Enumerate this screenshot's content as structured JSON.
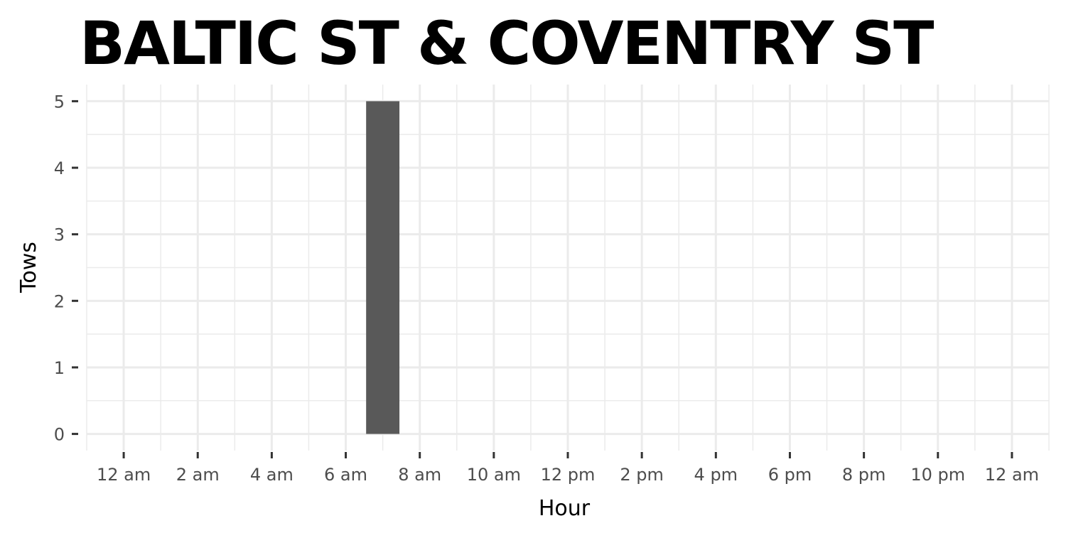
{
  "chart_data": {
    "type": "bar",
    "title": "BALTIC ST & COVENTRY ST",
    "xlabel": "Hour",
    "ylabel": "Tows",
    "x_tick_values": [
      0,
      2,
      4,
      6,
      8,
      10,
      12,
      14,
      16,
      18,
      20,
      22,
      24
    ],
    "x_tick_labels": [
      "12 am",
      "2 am",
      "4 am",
      "6 am",
      "8 am",
      "10 am",
      "12 pm",
      "2 pm",
      "4 pm",
      "6 pm",
      "8 pm",
      "10 pm",
      "12 am"
    ],
    "y_tick_values": [
      0,
      1,
      2,
      3,
      4,
      5
    ],
    "y_tick_labels": [
      "0",
      "1",
      "2",
      "3",
      "4",
      "5"
    ],
    "xlim": [
      -1,
      25
    ],
    "ylim": [
      -0.25,
      5.25
    ],
    "bars": [
      {
        "hour": 7,
        "value": 5
      }
    ],
    "bar_color": "#595959",
    "grid": true,
    "grid_color": "#ebebeb",
    "tick_color": "#333333"
  }
}
